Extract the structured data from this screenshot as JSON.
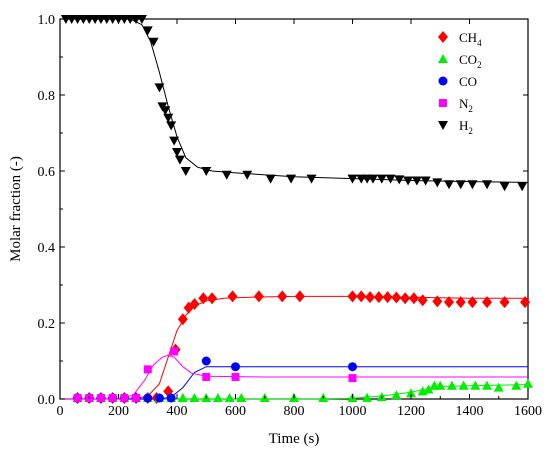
{
  "chart_data": {
    "type": "scatter",
    "xlabel": "Time (s)",
    "ylabel": "Molar fraction (-)",
    "xlim": [
      0,
      1600
    ],
    "ylim": [
      0,
      1.0
    ],
    "xticks": [
      0,
      200,
      400,
      600,
      800,
      1000,
      1200,
      1400,
      1600
    ],
    "yticks": [
      0.0,
      0.2,
      0.4,
      0.6,
      0.8,
      1.0
    ],
    "xtick_labels": [
      "0",
      "200",
      "400",
      "600",
      "800",
      "1000",
      "1200",
      "1400",
      "1600"
    ],
    "ytick_labels": [
      "0.0",
      "0.2",
      "0.4",
      "0.6",
      "0.8",
      "1.0"
    ],
    "grid": false,
    "legend_position": "top-right",
    "series": [
      {
        "name": "CH4",
        "label_main": "CH",
        "label_sub": "4",
        "marker": "diamond",
        "color": "#ff0000",
        "points": [
          [
            60,
            0.0
          ],
          [
            100,
            0.0
          ],
          [
            140,
            0.0
          ],
          [
            180,
            0.0
          ],
          [
            220,
            0.0
          ],
          [
            260,
            0.0
          ],
          [
            300,
            0.0
          ],
          [
            330,
            0.0
          ],
          [
            370,
            0.02
          ],
          [
            395,
            0.13
          ],
          [
            420,
            0.21
          ],
          [
            440,
            0.24
          ],
          [
            460,
            0.25
          ],
          [
            490,
            0.265
          ],
          [
            520,
            0.265
          ],
          [
            590,
            0.27
          ],
          [
            680,
            0.27
          ],
          [
            760,
            0.27
          ],
          [
            820,
            0.27
          ],
          [
            1000,
            0.27
          ],
          [
            1030,
            0.27
          ],
          [
            1060,
            0.268
          ],
          [
            1090,
            0.268
          ],
          [
            1120,
            0.268
          ],
          [
            1150,
            0.267
          ],
          [
            1180,
            0.265
          ],
          [
            1210,
            0.265
          ],
          [
            1240,
            0.26
          ],
          [
            1290,
            0.257
          ],
          [
            1330,
            0.255
          ],
          [
            1370,
            0.255
          ],
          [
            1410,
            0.255
          ],
          [
            1460,
            0.255
          ],
          [
            1520,
            0.255
          ],
          [
            1590,
            0.255
          ]
        ],
        "fit": [
          [
            0,
            0.0
          ],
          [
            250,
            0.0
          ],
          [
            300,
            0.008
          ],
          [
            340,
            0.04
          ],
          [
            370,
            0.11
          ],
          [
            400,
            0.18
          ],
          [
            430,
            0.22
          ],
          [
            460,
            0.245
          ],
          [
            500,
            0.258
          ],
          [
            560,
            0.265
          ],
          [
            650,
            0.268
          ],
          [
            800,
            0.27
          ],
          [
            1000,
            0.27
          ],
          [
            1200,
            0.268
          ],
          [
            1400,
            0.265
          ],
          [
            1600,
            0.265
          ]
        ]
      },
      {
        "name": "CO2",
        "label_main": "CO",
        "label_sub": "2",
        "marker": "triangle-up",
        "color": "#00ee00",
        "points": [
          [
            60,
            0.0
          ],
          [
            100,
            0.0
          ],
          [
            140,
            0.0
          ],
          [
            180,
            0.0
          ],
          [
            220,
            0.0
          ],
          [
            260,
            0.0
          ],
          [
            300,
            0.0
          ],
          [
            340,
            0.0
          ],
          [
            380,
            0.0
          ],
          [
            420,
            0.0
          ],
          [
            460,
            0.0
          ],
          [
            500,
            0.0
          ],
          [
            540,
            0.0
          ],
          [
            580,
            0.0
          ],
          [
            620,
            0.0
          ],
          [
            700,
            0.0
          ],
          [
            800,
            0.0
          ],
          [
            900,
            0.0
          ],
          [
            1000,
            0.0
          ],
          [
            1050,
            0.003
          ],
          [
            1100,
            0.005
          ],
          [
            1150,
            0.01
          ],
          [
            1200,
            0.015
          ],
          [
            1240,
            0.02
          ],
          [
            1260,
            0.025
          ],
          [
            1280,
            0.035
          ],
          [
            1300,
            0.035
          ],
          [
            1340,
            0.035
          ],
          [
            1380,
            0.035
          ],
          [
            1420,
            0.035
          ],
          [
            1460,
            0.035
          ],
          [
            1500,
            0.03
          ],
          [
            1560,
            0.035
          ],
          [
            1600,
            0.04
          ]
        ],
        "fit": [
          [
            0,
            0.0
          ],
          [
            900,
            0.0
          ],
          [
            1000,
            0.002
          ],
          [
            1100,
            0.008
          ],
          [
            1200,
            0.018
          ],
          [
            1260,
            0.028
          ],
          [
            1300,
            0.033
          ],
          [
            1400,
            0.035
          ],
          [
            1600,
            0.038
          ]
        ]
      },
      {
        "name": "CO",
        "label_main": "CO",
        "label_sub": "",
        "marker": "circle",
        "color": "#0000ff",
        "points": [
          [
            60,
            0.0
          ],
          [
            100,
            0.0
          ],
          [
            140,
            0.0
          ],
          [
            180,
            0.0
          ],
          [
            220,
            0.0
          ],
          [
            260,
            0.0
          ],
          [
            300,
            0.0
          ],
          [
            340,
            0.0
          ],
          [
            380,
            0.0
          ],
          [
            500,
            0.1
          ],
          [
            600,
            0.085
          ],
          [
            1000,
            0.085
          ]
        ],
        "fit": [
          [
            0,
            0.0
          ],
          [
            340,
            0.0
          ],
          [
            380,
            0.005
          ],
          [
            420,
            0.03
          ],
          [
            460,
            0.07
          ],
          [
            500,
            0.085
          ],
          [
            560,
            0.085
          ],
          [
            1000,
            0.085
          ],
          [
            1600,
            0.085
          ]
        ]
      },
      {
        "name": "N2",
        "label_main": "N",
        "label_sub": "2",
        "marker": "square",
        "color": "#ff00ff",
        "points": [
          [
            60,
            0.0
          ],
          [
            100,
            0.0
          ],
          [
            140,
            0.0
          ],
          [
            180,
            0.0
          ],
          [
            220,
            0.0
          ],
          [
            260,
            0.0
          ],
          [
            300,
            0.078
          ],
          [
            390,
            0.125
          ],
          [
            500,
            0.058
          ],
          [
            600,
            0.058
          ],
          [
            1000,
            0.055
          ]
        ],
        "fit": [
          [
            0,
            0.0
          ],
          [
            200,
            0.0
          ],
          [
            250,
            0.01
          ],
          [
            290,
            0.05
          ],
          [
            320,
            0.09
          ],
          [
            350,
            0.11
          ],
          [
            370,
            0.115
          ],
          [
            390,
            0.11
          ],
          [
            420,
            0.085
          ],
          [
            450,
            0.068
          ],
          [
            500,
            0.06
          ],
          [
            700,
            0.058
          ],
          [
            1600,
            0.058
          ]
        ]
      },
      {
        "name": "H2",
        "label_main": "H",
        "label_sub": "2",
        "marker": "triangle-down",
        "color": "#000000",
        "points": [
          [
            20,
            1.0
          ],
          [
            40,
            1.0
          ],
          [
            60,
            1.0
          ],
          [
            80,
            1.0
          ],
          [
            100,
            1.0
          ],
          [
            120,
            1.0
          ],
          [
            140,
            1.0
          ],
          [
            160,
            1.0
          ],
          [
            180,
            1.0
          ],
          [
            200,
            1.0
          ],
          [
            220,
            1.0
          ],
          [
            240,
            1.0
          ],
          [
            260,
            1.0
          ],
          [
            280,
            1.0
          ],
          [
            300,
            0.97
          ],
          [
            320,
            0.94
          ],
          [
            340,
            0.82
          ],
          [
            350,
            0.77
          ],
          [
            360,
            0.76
          ],
          [
            370,
            0.74
          ],
          [
            380,
            0.72
          ],
          [
            390,
            0.68
          ],
          [
            400,
            0.65
          ],
          [
            410,
            0.63
          ],
          [
            430,
            0.6
          ],
          [
            500,
            0.6
          ],
          [
            570,
            0.59
          ],
          [
            640,
            0.59
          ],
          [
            720,
            0.58
          ],
          [
            790,
            0.58
          ],
          [
            860,
            0.58
          ],
          [
            1000,
            0.58
          ],
          [
            1030,
            0.58
          ],
          [
            1050,
            0.58
          ],
          [
            1070,
            0.58
          ],
          [
            1100,
            0.58
          ],
          [
            1130,
            0.58
          ],
          [
            1160,
            0.578
          ],
          [
            1190,
            0.575
          ],
          [
            1220,
            0.575
          ],
          [
            1250,
            0.575
          ],
          [
            1290,
            0.57
          ],
          [
            1330,
            0.565
          ],
          [
            1370,
            0.565
          ],
          [
            1410,
            0.565
          ],
          [
            1460,
            0.565
          ],
          [
            1520,
            0.56
          ],
          [
            1580,
            0.56
          ]
        ],
        "fit": [
          [
            0,
            1.0
          ],
          [
            240,
            1.0
          ],
          [
            280,
            0.985
          ],
          [
            310,
            0.94
          ],
          [
            340,
            0.86
          ],
          [
            370,
            0.77
          ],
          [
            400,
            0.69
          ],
          [
            430,
            0.635
          ],
          [
            470,
            0.61
          ],
          [
            520,
            0.6
          ],
          [
            600,
            0.595
          ],
          [
            800,
            0.585
          ],
          [
            1000,
            0.58
          ],
          [
            1200,
            0.575
          ],
          [
            1400,
            0.572
          ],
          [
            1600,
            0.57
          ]
        ]
      }
    ]
  }
}
